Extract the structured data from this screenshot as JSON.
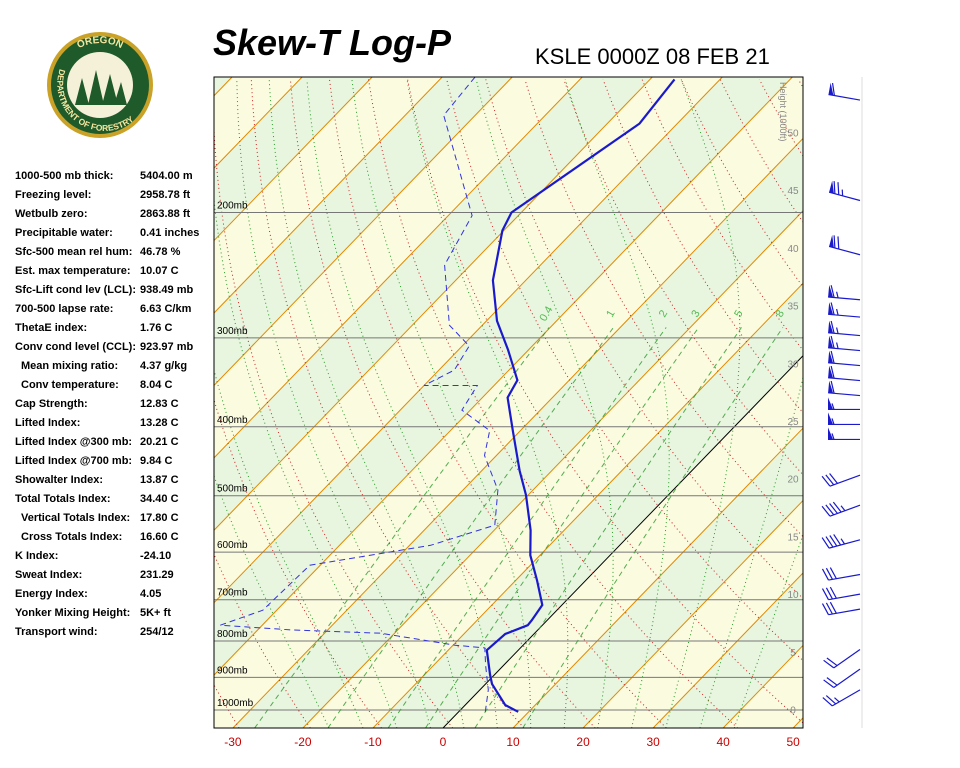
{
  "logo": {
    "top": "OREGON",
    "bottom": "DEPARTMENT OF FORESTRY"
  },
  "indices": [
    {
      "label": "1000-500 mb thick:",
      "value": "5404.00 m"
    },
    {
      "label": "Freezing level:",
      "value": "2958.78 ft"
    },
    {
      "label": "Wetbulb zero:",
      "value": "2863.88 ft"
    },
    {
      "label": "Precipitable water:",
      "value": "0.41 inches"
    },
    {
      "label": "Sfc-500 mean rel hum:",
      "value": "46.78 %"
    },
    {
      "label": "Est. max temperature:",
      "value": "10.07 C"
    },
    {
      "label": "Sfc-Lift cond lev (LCL):",
      "value": "938.49 mb"
    },
    {
      "label": "700-500 lapse rate:",
      "value": "6.63 C/km"
    },
    {
      "label": "ThetaE index:",
      "value": "1.76 C"
    },
    {
      "label": "Conv cond level (CCL):",
      "value": "923.97 mb"
    },
    {
      "label": "Mean mixing ratio:",
      "value": "4.37 g/kg"
    },
    {
      "label": "Conv temperature:",
      "value": "8.04 C"
    },
    {
      "label": "Cap Strength:",
      "value": "12.83 C"
    },
    {
      "label": "Lifted Index:",
      "value": "13.28 C"
    },
    {
      "label": "Lifted Index @300 mb:",
      "value": "20.21 C"
    },
    {
      "label": "Lifted Index @700 mb:",
      "value": "9.84 C"
    },
    {
      "label": "Showalter Index:",
      "value": "13.87 C"
    },
    {
      "label": "Total Totals Index:",
      "value": "34.40 C"
    },
    {
      "label": "Vertical Totals Index:",
      "value": "17.80 C"
    },
    {
      "label": "Cross Totals Index:",
      "value": "16.60 C"
    },
    {
      "label": "K Index:",
      "value": "-24.10"
    },
    {
      "label": "Sweat Index:",
      "value": "231.29"
    },
    {
      "label": "Energy Index:",
      "value": "4.05"
    },
    {
      "label": "Yonker Mixing Height:",
      "value": "5K+ ft"
    },
    {
      "label": "Transport wind:",
      "value": "254/12"
    }
  ],
  "chart_data": {
    "type": "skew-t",
    "title": "Skew-T Log-P",
    "subtitle": "KSLE 0000Z 08 FEB 21",
    "xlim": [
      -32.7,
      51.4
    ],
    "xticks": [
      -30,
      -20,
      -10,
      0,
      10,
      20,
      30,
      40,
      50
    ],
    "ylim": [
      1060,
      129
    ],
    "log_y": true,
    "yticks": [
      {
        "value": 1000,
        "label": "1000mb"
      },
      {
        "value": 900,
        "label": "900mb"
      },
      {
        "value": 800,
        "label": "800mb"
      },
      {
        "value": 700,
        "label": "700mb"
      },
      {
        "value": 600,
        "label": "600mb"
      },
      {
        "value": 500,
        "label": "500mb"
      },
      {
        "value": 400,
        "label": "400mb"
      },
      {
        "value": 300,
        "label": "300mb"
      },
      {
        "value": 200,
        "label": "200mb"
      }
    ],
    "y2label": "Height (1000ft)",
    "y2lim": [
      -1.6,
      54.8
    ],
    "y2ticks": [
      0,
      5,
      10,
      15,
      20,
      25,
      30,
      35,
      40,
      45,
      50
    ],
    "mixing_ratios": [
      0.4,
      1,
      2,
      3,
      5,
      8
    ],
    "series": [
      {
        "color": "#1a1acc",
        "dash": false,
        "values": [
          1006,
          984,
          919,
          893,
          824,
          782,
          760,
          748,
          712,
          657,
          606,
          559,
          499,
          461,
          405,
          364,
          344,
          312,
          284,
          249,
          212,
          200,
          150,
          130
        ],
        "x": [
          8.5,
          5.7,
          0.9,
          -0.6,
          -4.5,
          -4.1,
          -2.1,
          -2.2,
          -2.8,
          -7,
          -11.4,
          -14.8,
          -20.3,
          -24.6,
          -31.1,
          -36.4,
          -37.4,
          -42.9,
          -48.5,
          -54.7,
          -60.2,
          -61.4,
          -55.4,
          -56.5
        ]
      },
      {
        "color": "#3333dd",
        "dash": true,
        "values": [
          1006,
          937,
          865,
          818,
          811,
          780,
          772,
          760,
          724,
          626,
          587,
          550,
          491,
          439,
          405,
          379,
          350,
          350,
          333,
          308,
          288,
          237,
          202,
          146,
          129
        ],
        "x": [
          3.8,
          1.2,
          -2.6,
          -5.1,
          -9.7,
          -22,
          -35,
          -46,
          -42,
          -41.5,
          -27,
          -20.6,
          -25,
          -31.7,
          -34.4,
          -41.2,
          -42.4,
          -50,
          -47.8,
          -49,
          -54.7,
          -63.7,
          -66.6,
          -84.5,
          -85.3
        ]
      }
    ],
    "wind": {
      "heights": [
        52.8,
        44.1,
        39.4,
        35.5,
        34,
        32.4,
        31.1,
        29.8,
        28.5,
        27.2,
        26,
        24.7,
        23.4,
        20.3,
        17.7,
        14.7,
        11.7,
        10,
        8.7,
        5.2,
        3.5,
        1.7
      ],
      "speeds": [
        60,
        75,
        70,
        65,
        65,
        65,
        65,
        60,
        60,
        60,
        55,
        55,
        55,
        30,
        45,
        45,
        30,
        30,
        30,
        20,
        20,
        25
      ],
      "directions": [
        280,
        285,
        285,
        275,
        275,
        275,
        275,
        275,
        275,
        275,
        270,
        270,
        270,
        250,
        250,
        255,
        260,
        260,
        260,
        235,
        235,
        240
      ]
    }
  }
}
